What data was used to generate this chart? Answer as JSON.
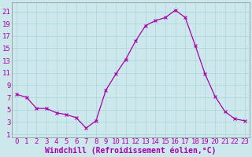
{
  "x": [
    0,
    1,
    2,
    3,
    4,
    5,
    6,
    7,
    8,
    9,
    10,
    11,
    12,
    13,
    14,
    15,
    16,
    17,
    18,
    19,
    20,
    21,
    22,
    23
  ],
  "y": [
    7.5,
    7,
    5.2,
    5.2,
    4.5,
    4.2,
    3.7,
    2.0,
    3.2,
    8.2,
    10.8,
    13.2,
    16.2,
    18.7,
    19.5,
    20.0,
    21.2,
    20.0,
    15.5,
    10.8,
    7.2,
    4.7,
    3.5,
    3.2
  ],
  "line_color": "#aa00aa",
  "marker": "x",
  "marker_size": 3,
  "marker_linewidth": 0.8,
  "linewidth": 0.9,
  "bg_color": "#cce8ec",
  "grid_color": "#b0d8de",
  "xlabel": "Windchill (Refroidissement éolien,°C)",
  "xlabel_color": "#aa00aa",
  "tick_color": "#aa00aa",
  "label_color": "#aa00aa",
  "yticks": [
    1,
    3,
    5,
    7,
    9,
    11,
    13,
    15,
    17,
    19,
    21
  ],
  "xticks": [
    0,
    1,
    2,
    3,
    4,
    5,
    6,
    7,
    8,
    9,
    10,
    11,
    12,
    13,
    14,
    15,
    16,
    17,
    18,
    19,
    20,
    21,
    22,
    23
  ],
  "ylim": [
    0.5,
    22.5
  ],
  "xlim": [
    -0.5,
    23.5
  ],
  "font_size": 6.5,
  "xlabel_fontsize": 7
}
